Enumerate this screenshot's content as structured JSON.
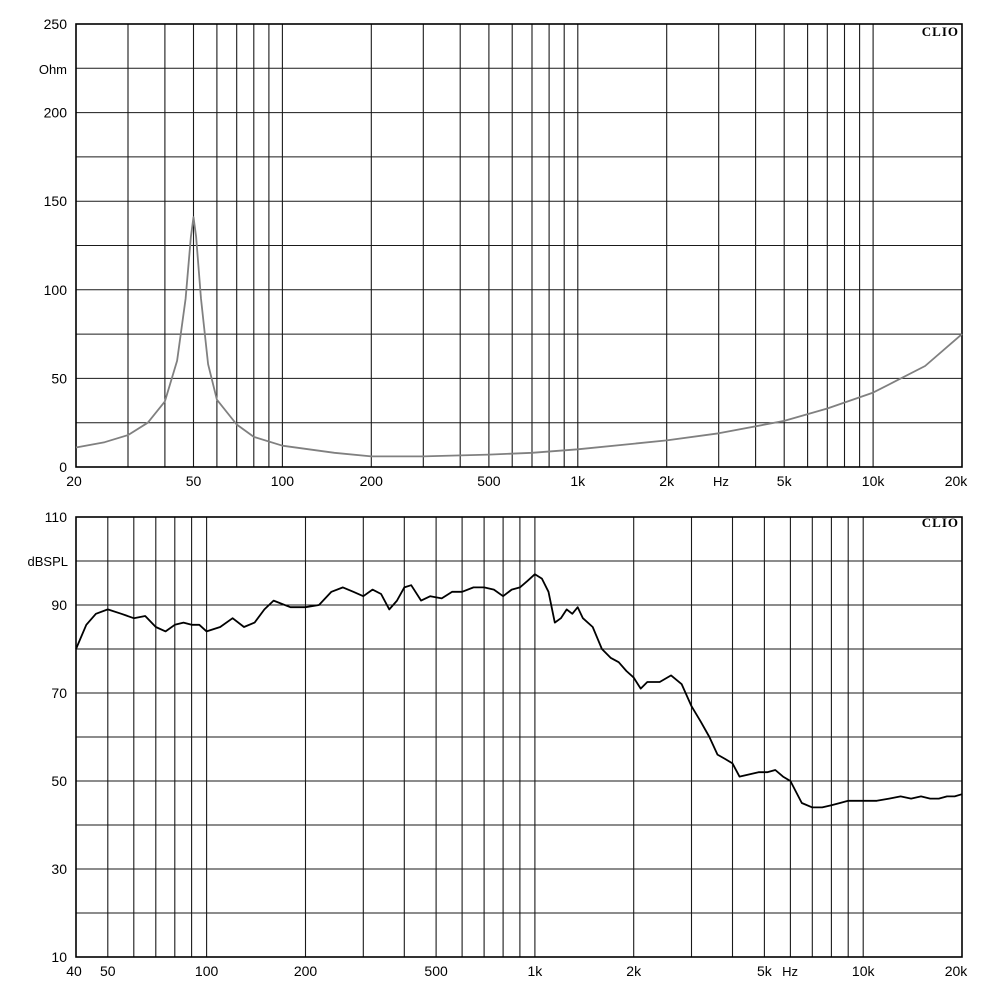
{
  "chart_data": [
    {
      "type": "line",
      "brand": "CLIO",
      "ylabel": "Ohm",
      "xunit": "Hz",
      "xscale": "log",
      "xlim": [
        20,
        20000
      ],
      "ylim": [
        0,
        250
      ],
      "grid": true,
      "line_color": "#808080",
      "yticks": [
        "0",
        "50",
        "100",
        "150",
        "200",
        "250"
      ],
      "xticks": [
        "20",
        "50",
        "100",
        "200",
        "500",
        "1k",
        "2k",
        "5k",
        "10k",
        "20k"
      ],
      "series": [
        {
          "x": [
            20,
            25,
            30,
            35,
            40,
            44,
            47,
            49,
            50,
            51,
            53,
            56,
            60,
            70,
            80,
            100,
            150,
            200,
            300,
            500,
            700,
            1000,
            2000,
            3000,
            5000,
            7000,
            10000,
            15000,
            20000
          ],
          "values": [
            11,
            14,
            18,
            25,
            37,
            60,
            95,
            130,
            141,
            130,
            95,
            58,
            38,
            24,
            17,
            12,
            8,
            6,
            6,
            7,
            8,
            10,
            15,
            19,
            26,
            33,
            42,
            57,
            75
          ]
        }
      ]
    },
    {
      "type": "line",
      "brand": "CLIO",
      "ylabel": "dBSPL",
      "xunit": "Hz",
      "xscale": "log",
      "xlim": [
        40,
        20000
      ],
      "ylim": [
        10,
        110
      ],
      "grid": true,
      "line_color": "#000000",
      "yticks": [
        "10",
        "30",
        "50",
        "70",
        "90",
        "110"
      ],
      "xticks": [
        "40",
        "50",
        "100",
        "200",
        "500",
        "1k",
        "2k",
        "5k",
        "10k",
        "20k"
      ],
      "series": [
        {
          "x": [
            40,
            43,
            46,
            50,
            55,
            60,
            65,
            70,
            75,
            80,
            85,
            90,
            95,
            100,
            110,
            120,
            130,
            140,
            150,
            160,
            180,
            200,
            220,
            240,
            260,
            280,
            300,
            320,
            340,
            360,
            380,
            400,
            420,
            450,
            480,
            520,
            560,
            600,
            650,
            700,
            750,
            800,
            850,
            900,
            950,
            1000,
            1050,
            1100,
            1150,
            1200,
            1250,
            1300,
            1350,
            1400,
            1500,
            1600,
            1700,
            1800,
            1900,
            2000,
            2100,
            2200,
            2400,
            2600,
            2800,
            3000,
            3200,
            3400,
            3600,
            3800,
            4000,
            4200,
            4500,
            4800,
            5100,
            5400,
            5700,
            6000,
            6500,
            7000,
            7500,
            8000,
            8500,
            9000,
            10000,
            11000,
            12000,
            13000,
            14000,
            15000,
            16000,
            17000,
            18000,
            19000,
            20000
          ],
          "values": [
            80,
            85.5,
            88,
            89,
            88,
            87,
            87.5,
            85,
            84,
            85.5,
            86,
            85.5,
            85.5,
            84,
            85,
            87,
            85,
            86,
            89,
            91,
            89.5,
            89.5,
            90,
            93,
            94,
            93,
            92,
            93.5,
            92.5,
            89,
            91,
            94,
            94.5,
            91,
            92,
            91.5,
            93,
            93,
            94,
            94,
            93.5,
            92,
            93.5,
            94,
            95.5,
            97,
            96,
            93,
            86,
            87,
            89,
            88,
            89.5,
            87,
            85,
            80,
            78,
            77,
            75,
            73.5,
            71,
            72.5,
            72.5,
            74,
            72,
            67,
            63.5,
            60,
            56,
            55,
            54,
            51,
            51.5,
            52,
            52,
            52.5,
            51,
            50,
            45,
            44,
            44,
            44.5,
            45,
            45.5,
            45.5,
            45.5,
            46,
            46.5,
            46,
            46.5,
            46,
            46,
            46.5,
            46.5,
            47
          ]
        }
      ]
    }
  ]
}
